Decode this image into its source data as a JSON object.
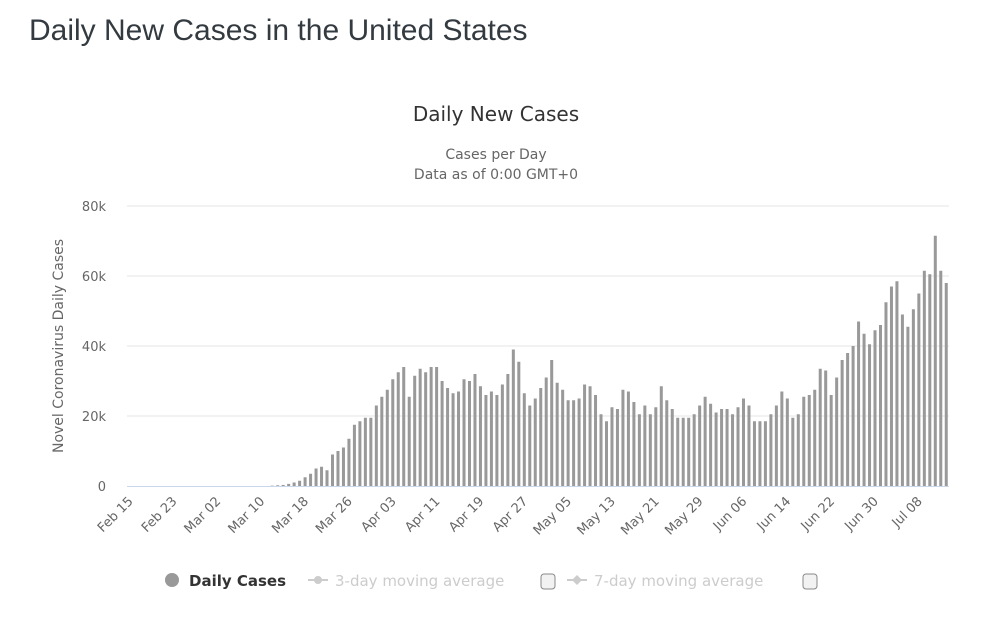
{
  "page": {
    "title": "Daily New Cases in the United States"
  },
  "colors": {
    "bar": "#999999",
    "grid": "#e6e6e6",
    "axis": "#ccd6eb",
    "inactive": "#cccccc"
  },
  "legend": {
    "items": [
      {
        "label": "Daily Cases",
        "icon": "circle-marker-icon",
        "active": true
      },
      {
        "label": "3-day moving average",
        "icon": "line-marker-icon",
        "active": false
      },
      {
        "label": "7-day moving average",
        "icon": "line-marker-icon",
        "active": false
      }
    ]
  },
  "chart_data": {
    "type": "bar",
    "title": "Daily New Cases",
    "subtitle_lines": [
      "Cases per Day",
      "Data as of 0:00 GMT+0"
    ],
    "xlabel": "",
    "ylabel": "Novel Coronavirus Daily Cases",
    "ylim": [
      0,
      80000
    ],
    "yticks": [
      0,
      20000,
      40000,
      60000,
      80000
    ],
    "ytick_labels": [
      "0",
      "20k",
      "40k",
      "60k",
      "80k"
    ],
    "xtick_labels": [
      "Feb 15",
      "Feb 23",
      "Mar 02",
      "Mar 10",
      "Mar 18",
      "Mar 26",
      "Apr 03",
      "Apr 11",
      "Apr 19",
      "Apr 27",
      "May 05",
      "May 13",
      "May 21",
      "May 29",
      "Jun 06",
      "Jun 14",
      "Jun 22",
      "Jun 30",
      "Jul 08"
    ],
    "xtick_interval_days": 8,
    "grid": true,
    "legend_position": "bottom",
    "start_date": "Feb 15",
    "series": [
      {
        "name": "Daily Cases",
        "values": [
          0,
          0,
          0,
          0,
          0,
          0,
          0,
          0,
          0,
          0,
          0,
          0,
          0,
          0,
          0,
          0,
          0,
          0,
          0,
          0,
          0,
          0,
          0,
          0,
          0,
          0,
          100,
          200,
          300,
          600,
          1000,
          1500,
          2500,
          3500,
          5000,
          5500,
          4500,
          9000,
          10000,
          11000,
          13500,
          17500,
          18500,
          19500,
          19500,
          23000,
          25500,
          27500,
          30500,
          32500,
          34000,
          25500,
          31500,
          33500,
          32500,
          34000,
          34000,
          30000,
          28000,
          26500,
          27000,
          30500,
          30000,
          32000,
          28500,
          26000,
          27000,
          26000,
          29000,
          32000,
          39000,
          35500,
          26500,
          23000,
          25000,
          28000,
          31000,
          36000,
          29500,
          27500,
          24500,
          24500,
          25000,
          29000,
          28500,
          26000,
          20500,
          18500,
          22500,
          22000,
          27500,
          27000,
          24000,
          20500,
          23000,
          20500,
          22500,
          28500,
          24500,
          22000,
          19500,
          19500,
          19500,
          20500,
          23000,
          25500,
          23500,
          21000,
          22000,
          22000,
          20500,
          22500,
          25000,
          23000,
          18500,
          18500,
          18500,
          20500,
          23000,
          27000,
          25000,
          19500,
          20500,
          25500,
          26000,
          27500,
          33500,
          33000,
          26000,
          31000,
          36000,
          38000,
          40000,
          47000,
          43500,
          40500,
          44500,
          46000,
          52500,
          57000,
          58500,
          49000,
          45500,
          50500,
          55000,
          61500,
          60500,
          71500,
          61500,
          58000
        ]
      }
    ]
  }
}
